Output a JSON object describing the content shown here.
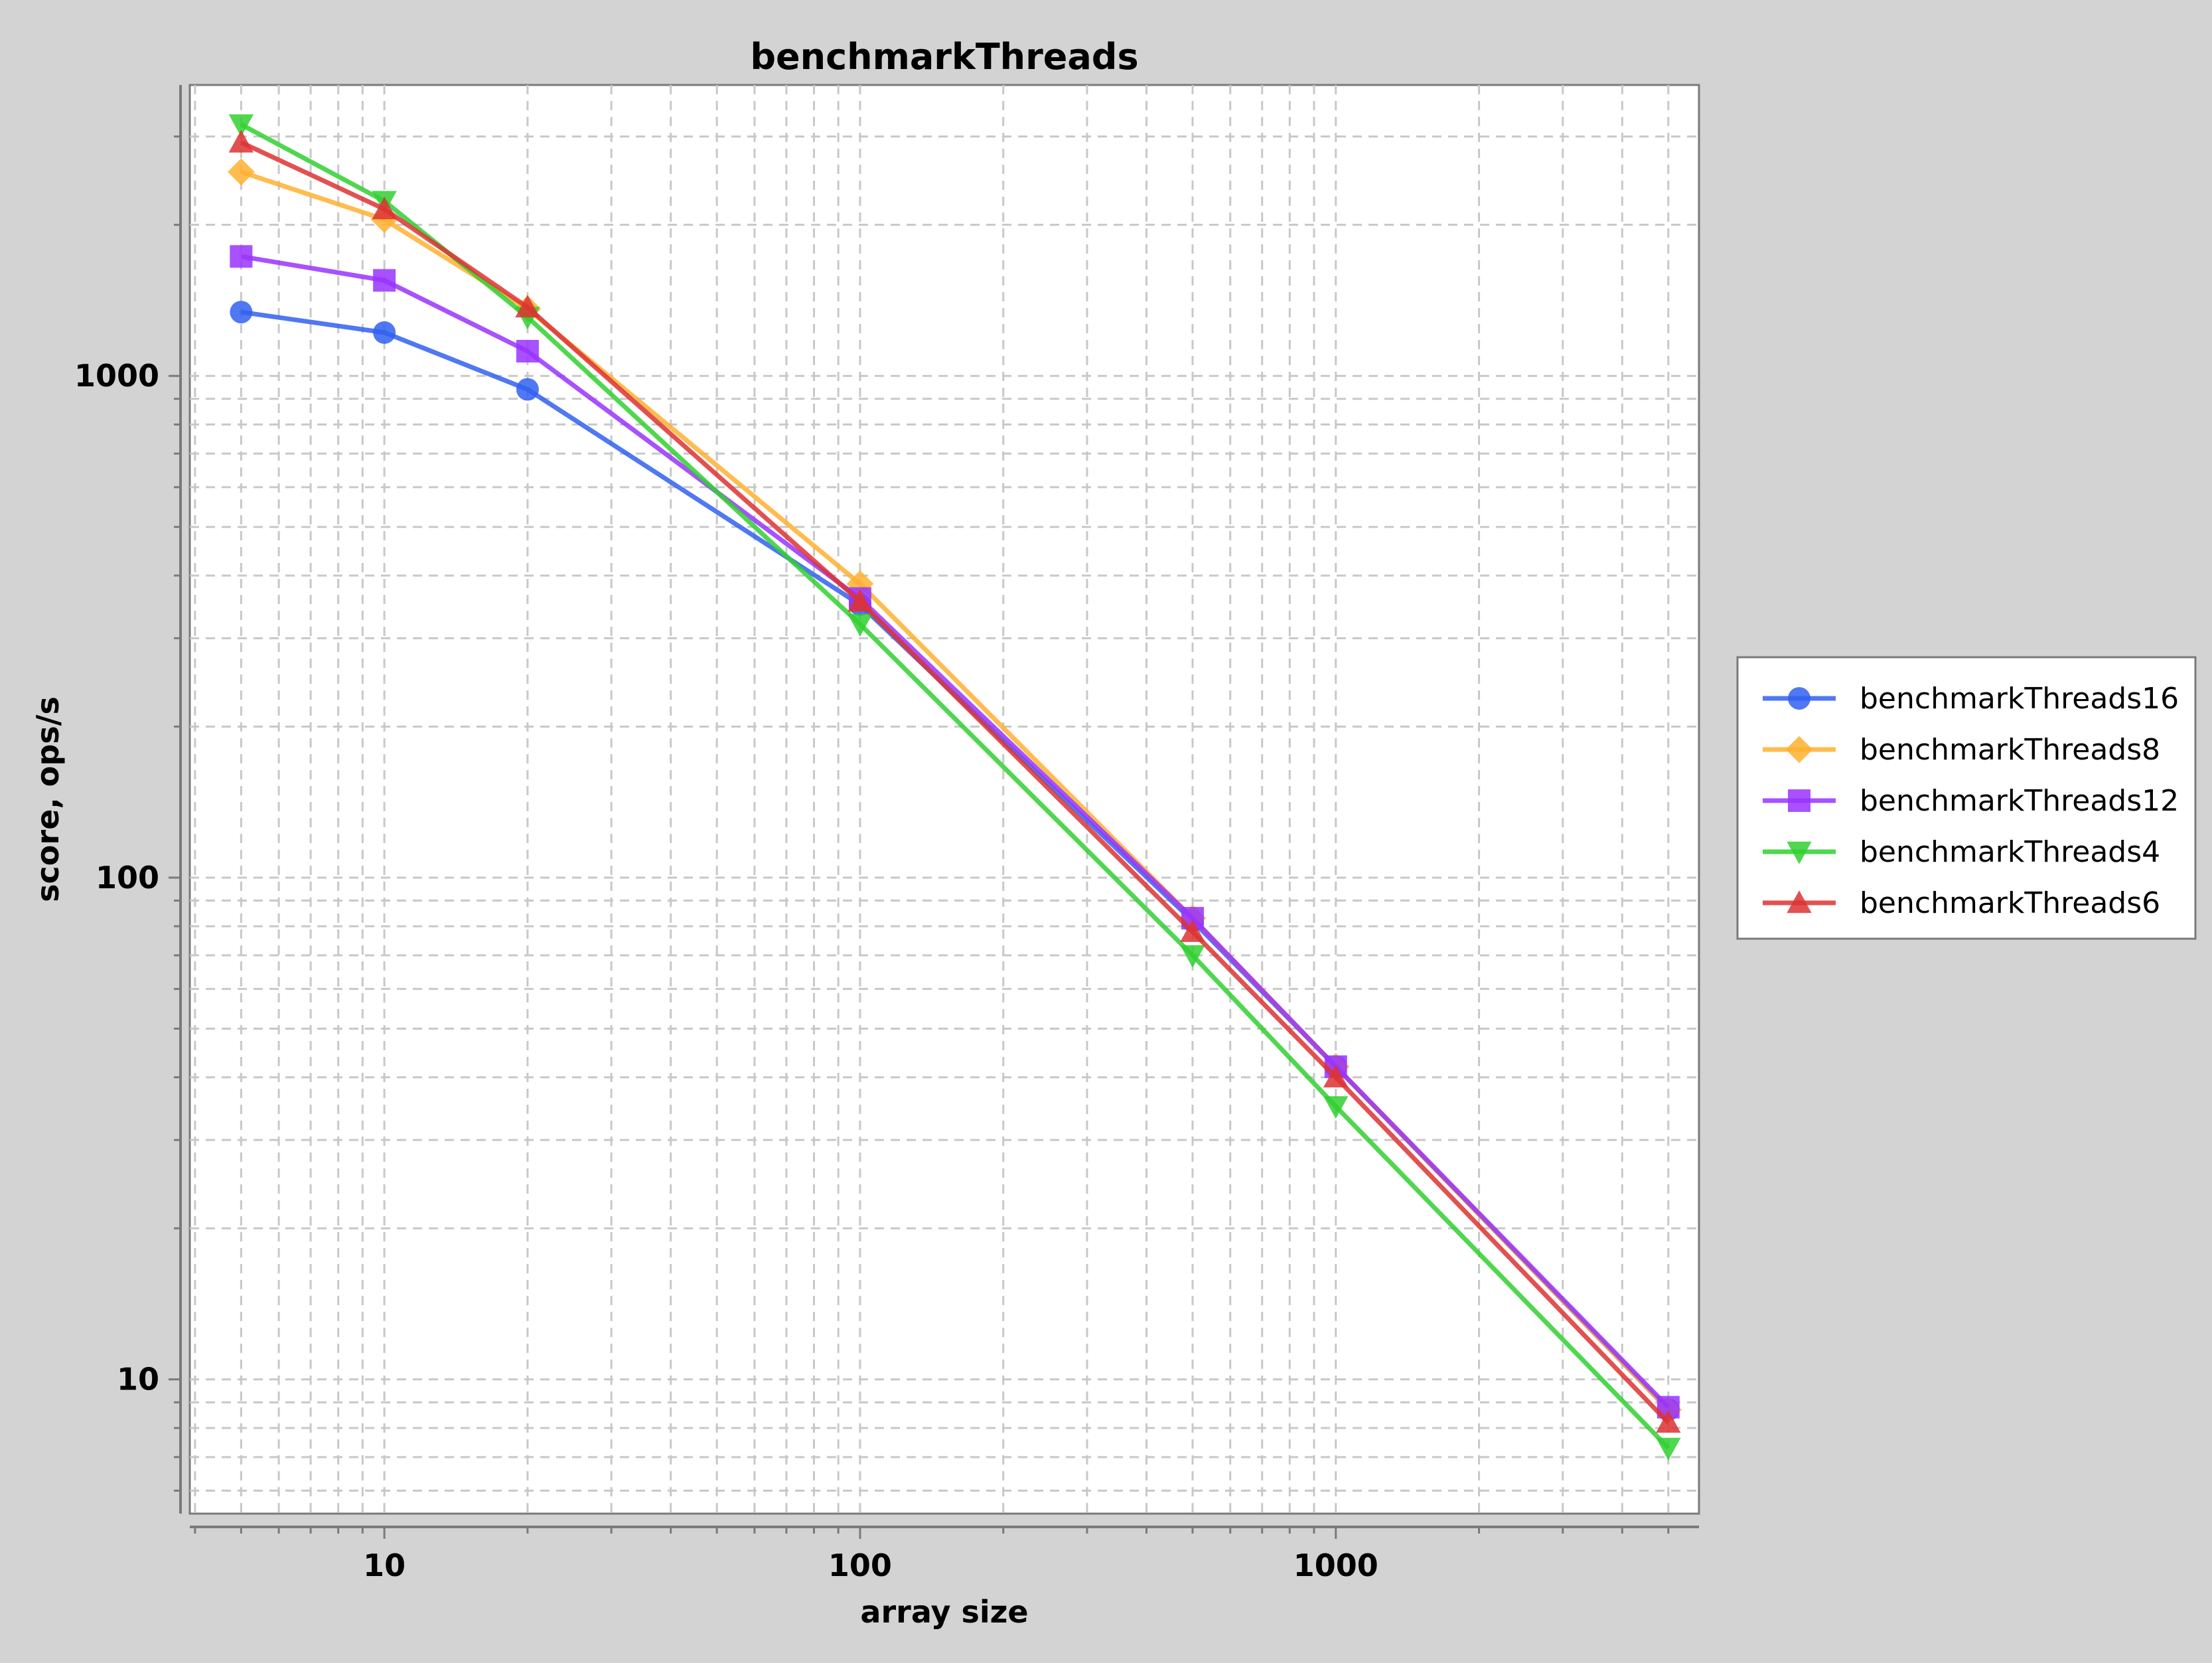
{
  "chart_data": {
    "type": "line",
    "title": "benchmarkThreads",
    "xlabel": "array size",
    "ylabel": "score, ops/s",
    "xscale": "log",
    "yscale": "log",
    "xlim": [
      3.9,
      5800
    ],
    "ylim": [
      5.4,
      3800
    ],
    "x_ticks": [
      10,
      100,
      1000
    ],
    "x_tick_labels": [
      "10",
      "100",
      "1000"
    ],
    "y_ticks": [
      10,
      100,
      1000
    ],
    "y_tick_labels": [
      "10",
      "100",
      "1000"
    ],
    "grid": true,
    "legend_position": "right",
    "x": [
      5,
      10,
      20,
      100,
      500,
      1000,
      5000
    ],
    "series": [
      {
        "name": "benchmarkThreads16",
        "color": "#3060f0",
        "marker": "circle",
        "values": [
          1340,
          1220,
          940,
          350,
          82,
          42,
          8.7
        ]
      },
      {
        "name": "benchmarkThreads8",
        "color": "#ffb030",
        "marker": "diamond",
        "values": [
          2550,
          2050,
          1360,
          385,
          83,
          42,
          8.7
        ]
      },
      {
        "name": "benchmarkThreads12",
        "color": "#9933ff",
        "marker": "square",
        "values": [
          1730,
          1550,
          1120,
          360,
          83,
          42,
          8.8
        ]
      },
      {
        "name": "benchmarkThreads4",
        "color": "#30d030",
        "marker": "triangle-down",
        "values": [
          3170,
          2230,
          1310,
          320,
          70,
          35,
          7.3
        ]
      },
      {
        "name": "benchmarkThreads6",
        "color": "#dd3333",
        "marker": "triangle-up",
        "values": [
          2920,
          2150,
          1370,
          355,
          78,
          40,
          8.2
        ]
      }
    ]
  }
}
